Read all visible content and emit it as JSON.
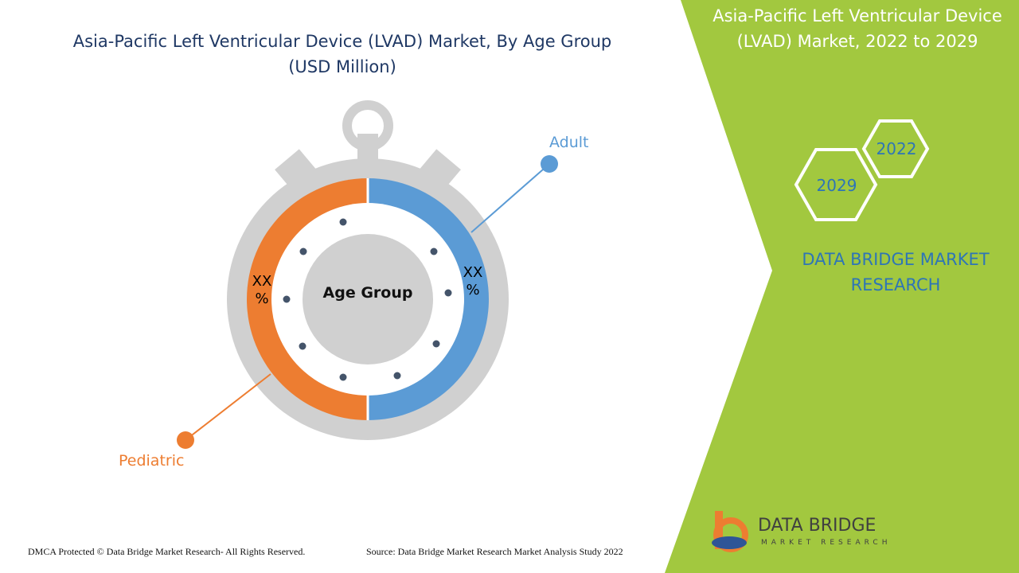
{
  "title_lines": [
    "Asia-Pacific Left Ventricular Device (LVAD) Market, By  Age Group",
    "(USD Million)"
  ],
  "center_label": "Age Group",
  "segments": [
    {
      "name": "Adult",
      "label": "XX %"
    },
    {
      "name": "Pediatric",
      "label": "XX %"
    }
  ],
  "side_panel": {
    "title": "Asia-Pacific Left Ventricular Device (LVAD) Market, 2022 to 2029",
    "years": [
      "2022",
      "2029"
    ],
    "brand": "DATA BRIDGE MARKET RESEARCH"
  },
  "logo": {
    "name": "DATA BRIDGE",
    "tagline": "MARKET RESEARCH"
  },
  "footer": {
    "copyright": "DMCA Protected © Data Bridge Market Research- All Rights Reserved.",
    "source": "Source: Data Bridge Market Research Market Analysis Study 2022"
  }
}
